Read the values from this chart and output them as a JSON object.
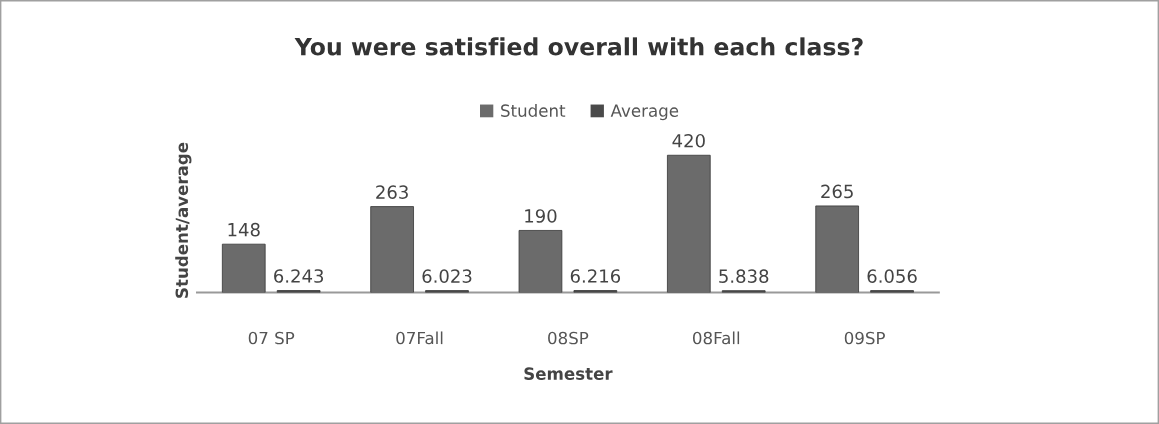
{
  "chart_data": {
    "type": "bar",
    "title": "You were satisfied overall with each class?",
    "xlabel": "Semester",
    "ylabel": "Student/average",
    "categories": [
      "07 SP",
      "07Fall",
      "08SP",
      "08Fall",
      "09SP"
    ],
    "series": [
      {
        "name": "Student",
        "color": "#6b6b6b",
        "values": [
          148,
          263,
          190,
          420,
          265
        ]
      },
      {
        "name": "Average",
        "color": "#4a4a4a",
        "values": [
          6.243,
          6.023,
          6.216,
          5.838,
          6.056
        ]
      }
    ],
    "data_labels": true,
    "legend": "top",
    "tick_labels": "x"
  }
}
